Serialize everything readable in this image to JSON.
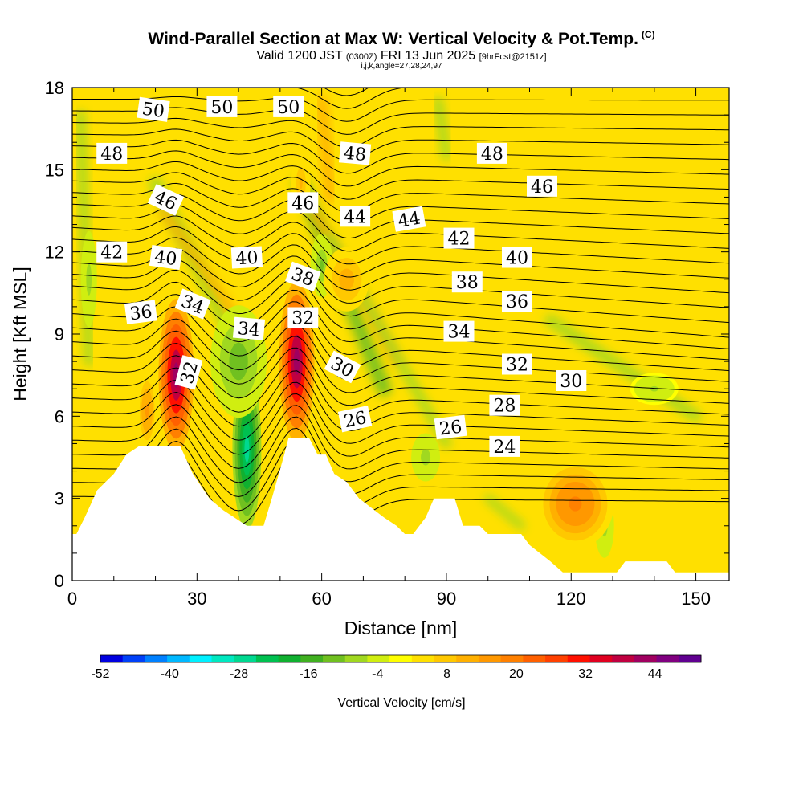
{
  "header": {
    "title": "Wind-Parallel Section at Max W: Vertical Velocity & Pot.Temp.",
    "copyright": "(C)",
    "valid_prefix": "Valid 1200 JST",
    "valid_utc": "(0300Z)",
    "valid_date": "FRI 13 Jun 2025",
    "forecast": "[9hrFcst@2151z]",
    "indices": "i,j,k,angle=27,28,24,97"
  },
  "chart_data": {
    "type": "heatmap",
    "xlabel": "Distance [nm]",
    "ylabel": "Height [Kft MSL]",
    "xlim": [
      0,
      158
    ],
    "ylim": [
      0,
      18
    ],
    "x_ticks": [
      0,
      30,
      60,
      90,
      120,
      150
    ],
    "y_ticks": [
      0,
      3,
      6,
      9,
      12,
      15,
      18
    ],
    "fill_field": "Vertical Velocity [cm/s]",
    "contour_field": "Potential Temperature",
    "colorbar": {
      "title": "Vertical Velocity [cm/s]",
      "tick_labels": [
        "-52",
        "-40",
        "-28",
        "-16",
        "-4",
        "8",
        "20",
        "32",
        "44"
      ],
      "tick_values": [
        -52,
        -40,
        -28,
        -16,
        -4,
        8,
        20,
        32,
        44
      ],
      "colors": [
        "#0000e0",
        "#0040f8",
        "#0080ff",
        "#00b8ff",
        "#00f0ff",
        "#00e8c0",
        "#00d890",
        "#00c050",
        "#10b030",
        "#40b020",
        "#70c020",
        "#a0d820",
        "#d0ee10",
        "#ffff00",
        "#ffe000",
        "#ffc800",
        "#ffb000",
        "#ff9800",
        "#ff8000",
        "#ff6000",
        "#ff4000",
        "#ff1000",
        "#e00020",
        "#c00040",
        "#a00060",
        "#800080",
        "#600090"
      ]
    },
    "terrain_kft": [
      [
        0,
        1.7
      ],
      [
        1,
        1.7
      ],
      [
        3,
        2.3
      ],
      [
        6,
        3.3
      ],
      [
        10,
        3.9
      ],
      [
        13,
        4.6
      ],
      [
        16,
        4.9
      ],
      [
        19,
        4.9
      ],
      [
        26,
        4.9
      ],
      [
        29,
        3.9
      ],
      [
        33,
        3.0
      ],
      [
        36,
        2.6
      ],
      [
        39,
        2.3
      ],
      [
        42,
        2.0
      ],
      [
        46,
        2.0
      ],
      [
        48,
        3.0
      ],
      [
        51,
        4.6
      ],
      [
        52,
        5.2
      ],
      [
        57,
        5.2
      ],
      [
        59,
        4.6
      ],
      [
        61,
        4.6
      ],
      [
        63,
        3.9
      ],
      [
        66,
        3.6
      ],
      [
        69,
        3.0
      ],
      [
        75,
        2.3
      ],
      [
        78,
        2.0
      ],
      [
        80,
        1.7
      ],
      [
        82,
        1.7
      ],
      [
        85,
        2.3
      ],
      [
        87,
        3.0
      ],
      [
        92,
        3.0
      ],
      [
        94,
        2.0
      ],
      [
        98,
        2.0
      ],
      [
        100,
        1.7
      ],
      [
        108,
        1.7
      ],
      [
        110,
        1.3
      ],
      [
        115,
        0.7
      ],
      [
        118,
        0.3
      ],
      [
        125,
        0.3
      ],
      [
        131,
        0.3
      ],
      [
        133,
        0.7
      ],
      [
        143,
        0.7
      ],
      [
        145,
        0.3
      ],
      [
        158,
        0.3
      ]
    ],
    "updrafts": [
      {
        "x": 25,
        "y": 7.5,
        "w": 44
      },
      {
        "x": 54,
        "y": 8.0,
        "w": 44
      },
      {
        "x": 121,
        "y": 2.8,
        "w": 20
      },
      {
        "x": 18,
        "y": 6.2,
        "w": 14
      },
      {
        "x": 66,
        "y": 11.0,
        "w": 12
      },
      {
        "x": 55,
        "y": 14.5,
        "w": 10
      }
    ],
    "downdrafts": [
      {
        "x": 42,
        "y": 4.8,
        "w": -28
      },
      {
        "x": 40,
        "y": 8.0,
        "w": -12
      },
      {
        "x": 60,
        "y": 11.5,
        "w": -10
      },
      {
        "x": 4,
        "y": 11.0,
        "w": -8
      },
      {
        "x": 85,
        "y": 4.5,
        "w": -8
      },
      {
        "x": 128,
        "y": 2.0,
        "w": -8
      },
      {
        "x": 140,
        "y": 7.0,
        "w": -6
      }
    ],
    "contour_labels": [
      {
        "text": "50",
        "x": 19.5,
        "y": 17.2,
        "angle": 8
      },
      {
        "text": "50",
        "x": 36,
        "y": 17.3,
        "angle": 0
      },
      {
        "text": "50",
        "x": 52,
        "y": 17.3,
        "angle": 0
      },
      {
        "text": "48",
        "x": 9.5,
        "y": 15.6,
        "angle": 0
      },
      {
        "text": "48",
        "x": 68,
        "y": 15.6,
        "angle": 5
      },
      {
        "text": "48",
        "x": 101,
        "y": 15.6,
        "angle": 0
      },
      {
        "text": "46",
        "x": 22.5,
        "y": 13.9,
        "angle": 25
      },
      {
        "text": "46",
        "x": 55.5,
        "y": 13.8,
        "angle": 0
      },
      {
        "text": "46",
        "x": 113,
        "y": 14.4,
        "angle": 0
      },
      {
        "text": "44",
        "x": 68,
        "y": 13.3,
        "angle": 0
      },
      {
        "text": "44",
        "x": 81,
        "y": 13.2,
        "angle": -10
      },
      {
        "text": "42",
        "x": 9.5,
        "y": 12.0,
        "angle": 0
      },
      {
        "text": "42",
        "x": 93,
        "y": 12.5,
        "angle": 0
      },
      {
        "text": "40",
        "x": 22.5,
        "y": 11.8,
        "angle": 8
      },
      {
        "text": "40",
        "x": 42,
        "y": 11.8,
        "angle": -3
      },
      {
        "text": "40",
        "x": 107,
        "y": 11.8,
        "angle": 0
      },
      {
        "text": "38",
        "x": 55.5,
        "y": 11.1,
        "angle": 20
      },
      {
        "text": "38",
        "x": 95,
        "y": 10.9,
        "angle": 0
      },
      {
        "text": "36",
        "x": 16.5,
        "y": 9.8,
        "angle": -7
      },
      {
        "text": "36",
        "x": 107,
        "y": 10.2,
        "angle": 0
      },
      {
        "text": "34",
        "x": 29,
        "y": 10.1,
        "angle": 22
      },
      {
        "text": "34",
        "x": 42.5,
        "y": 9.2,
        "angle": 5
      },
      {
        "text": "34",
        "x": 93,
        "y": 9.1,
        "angle": 0
      },
      {
        "text": "32",
        "x": 55.5,
        "y": 9.6,
        "angle": 0
      },
      {
        "text": "32",
        "x": 107,
        "y": 7.9,
        "angle": 0
      },
      {
        "text": "32",
        "x": 28,
        "y": 7.6,
        "angle": -75
      },
      {
        "text": "30",
        "x": 65,
        "y": 7.8,
        "angle": 28
      },
      {
        "text": "30",
        "x": 120,
        "y": 7.3,
        "angle": 0
      },
      {
        "text": "28",
        "x": 104,
        "y": 6.4,
        "angle": 0
      },
      {
        "text": "26",
        "x": 68,
        "y": 5.9,
        "angle": -12
      },
      {
        "text": "26",
        "x": 91,
        "y": 5.6,
        "angle": -7
      },
      {
        "text": "24",
        "x": 104,
        "y": 4.9,
        "angle": 0
      }
    ]
  }
}
